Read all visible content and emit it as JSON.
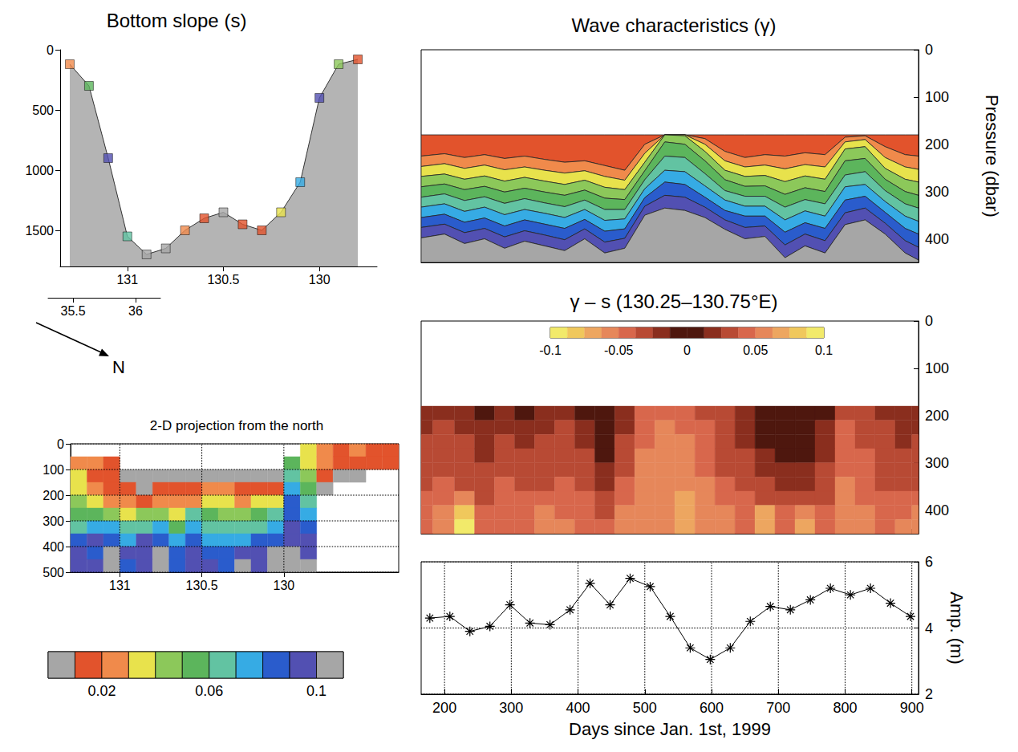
{
  "chart_data": [
    {
      "type": "area",
      "title": "Bottom slope (s)",
      "x": [
        131.3,
        131.2,
        131.1,
        131.0,
        130.9,
        130.8,
        130.7,
        130.6,
        130.5,
        130.4,
        130.3,
        130.2,
        130.1,
        130.0,
        129.9,
        129.8
      ],
      "values": [
        120,
        300,
        900,
        1550,
        1700,
        1650,
        1500,
        1400,
        1350,
        1450,
        1500,
        1350,
        1100,
        400,
        120,
        80
      ],
      "slope": [
        0.02,
        0.05,
        0.09,
        0.06,
        0.005,
        0.005,
        0.02,
        0.015,
        0.008,
        0.015,
        0.015,
        0.03,
        0.07,
        0.095,
        0.04,
        0.015
      ],
      "xlim": [
        131.35,
        129.7
      ],
      "xticks": [
        131,
        130.5,
        130
      ],
      "ylim": [
        1800,
        0
      ],
      "yticks": [
        0,
        500,
        1000,
        1500
      ],
      "latlim": [
        35.3,
        36.2
      ],
      "latticks": [
        35.5,
        36
      ],
      "direction_label": "N",
      "color": "#b4b4b4",
      "marker": "square"
    },
    {
      "type": "heatmap",
      "title": "2-D projection from the north",
      "x": [
        131.25,
        131.15,
        131.05,
        130.95,
        130.85,
        130.75,
        130.65,
        130.55,
        130.45,
        130.35,
        130.25,
        130.15,
        130.05,
        129.95,
        129.85,
        129.75,
        129.65,
        129.55,
        129.45,
        129.35
      ],
      "y": [
        25,
        75,
        125,
        175,
        225,
        275,
        325,
        375,
        425,
        475
      ],
      "cells": [
        [
          null,
          null,
          null,
          null,
          null,
          null,
          null,
          null,
          null,
          null,
          null,
          null,
          null,
          null,
          0.03,
          0.02,
          0.015,
          0.02,
          0.015,
          0.015
        ],
        [
          0.025,
          0.02,
          0.015,
          null,
          null,
          null,
          null,
          null,
          null,
          null,
          null,
          null,
          null,
          0.05,
          0.035,
          0.02,
          0.015,
          0.015,
          0.015,
          0.015
        ],
        [
          0.03,
          0.015,
          0.015,
          0.005,
          0.005,
          0.005,
          0.005,
          0.005,
          0.005,
          0.005,
          0.005,
          0.005,
          0.005,
          0.06,
          0.04,
          0.015,
          0.005,
          0.005,
          null,
          null
        ],
        [
          0.035,
          0.025,
          0.015,
          0.015,
          0.005,
          0.015,
          0.015,
          0.015,
          0.02,
          0.02,
          0.015,
          0.015,
          0.015,
          0.07,
          0.05,
          0.005,
          null,
          null,
          null,
          null
        ],
        [
          0.04,
          0.035,
          0.02,
          0.02,
          0.015,
          0.02,
          0.025,
          0.02,
          0.03,
          0.035,
          0.025,
          0.03,
          0.035,
          0.08,
          0.06,
          null,
          null,
          null,
          null,
          null
        ],
        [
          0.05,
          0.05,
          0.045,
          0.035,
          0.04,
          0.045,
          0.035,
          0.06,
          0.05,
          0.045,
          0.04,
          0.05,
          0.06,
          0.085,
          0.07,
          null,
          null,
          null,
          null,
          null
        ],
        [
          0.065,
          0.075,
          0.07,
          0.065,
          0.06,
          0.07,
          0.05,
          0.075,
          0.065,
          0.065,
          0.06,
          0.065,
          0.07,
          0.09,
          0.08,
          null,
          null,
          null,
          null,
          null
        ],
        [
          0.085,
          0.09,
          0.08,
          0.075,
          0.095,
          0.08,
          0.07,
          0.085,
          0.075,
          0.07,
          0.075,
          0.08,
          0.085,
          0.095,
          0.09,
          null,
          null,
          null,
          null,
          null
        ],
        [
          0.095,
          0.085,
          0.105,
          0.09,
          0.095,
          0.105,
          0.08,
          0.095,
          0.085,
          0.08,
          0.09,
          0.095,
          0.105,
          0.1,
          0.095,
          null,
          null,
          null,
          null,
          null
        ],
        [
          0.09,
          0.095,
          0.115,
          0.085,
          0.095,
          0.11,
          0.085,
          0.095,
          0.09,
          0.085,
          0.105,
          0.095,
          0.1,
          0.105,
          0.1,
          null,
          null,
          null,
          null,
          null
        ]
      ],
      "xlim": [
        131.3,
        129.3
      ],
      "xticks": [
        131,
        130.5,
        130
      ],
      "ylim": [
        500,
        0
      ],
      "yticks": [
        0,
        100,
        200,
        300,
        400,
        500
      ],
      "grid": true,
      "colorbar": {
        "range": [
          0,
          0.11
        ],
        "ticks": [
          0.02,
          0.06,
          0.1
        ],
        "colors": [
          "#a6a6a6",
          "#e2532c",
          "#f08a4b",
          "#e8e24c",
          "#8cc85a",
          "#5cb55c",
          "#62c3a2",
          "#36abe4",
          "#2a5ccc",
          "#5250b2",
          "#a6a6a6"
        ]
      }
    },
    {
      "type": "contour",
      "title": "Wave characteristics (γ)",
      "x": [
        165,
        200,
        230,
        260,
        290,
        320,
        350,
        380,
        410,
        440,
        470,
        500,
        530,
        560,
        590,
        620,
        650,
        680,
        710,
        740,
        770,
        800,
        830,
        860,
        890,
        910
      ],
      "top": 180,
      "levels": [
        0.02,
        0.03,
        0.04,
        0.05,
        0.06,
        0.07,
        0.08,
        0.09,
        0.1
      ],
      "contours": [
        [
          225,
          220,
          228,
          222,
          230,
          225,
          232,
          238,
          235,
          245,
          255,
          200,
          180,
          180,
          188,
          215,
          228,
          222,
          225,
          218,
          222,
          185,
          182,
          205,
          222,
          225
        ],
        [
          247,
          241,
          251,
          244,
          254,
          248,
          255,
          261,
          256,
          268,
          276,
          219,
          180,
          180,
          200,
          235,
          248,
          244,
          252,
          243,
          248,
          195,
          190,
          228,
          248,
          253
        ],
        [
          268,
          263,
          274,
          267,
          278,
          270,
          278,
          285,
          276,
          291,
          296,
          238,
          180,
          182,
          215,
          255,
          268,
          266,
          279,
          267,
          274,
          210,
          205,
          251,
          274,
          280
        ],
        [
          290,
          284,
          296,
          289,
          301,
          293,
          301,
          308,
          297,
          314,
          317,
          256,
          195,
          200,
          235,
          275,
          289,
          288,
          306,
          292,
          300,
          235,
          230,
          274,
          300,
          308
        ],
        [
          312,
          305,
          319,
          311,
          325,
          315,
          324,
          332,
          318,
          338,
          338,
          275,
          225,
          228,
          262,
          298,
          310,
          310,
          333,
          317,
          326,
          265,
          258,
          298,
          326,
          335
        ],
        [
          333,
          326,
          342,
          333,
          349,
          338,
          346,
          355,
          338,
          361,
          358,
          294,
          255,
          258,
          288,
          318,
          331,
          331,
          360,
          341,
          352,
          290,
          285,
          321,
          352,
          363
        ],
        [
          355,
          348,
          365,
          356,
          373,
          360,
          369,
          378,
          359,
          384,
          379,
          313,
          280,
          285,
          312,
          340,
          352,
          352,
          386,
          366,
          378,
          318,
          310,
          344,
          378,
          390
        ],
        [
          376,
          369,
          387,
          378,
          396,
          383,
          392,
          402,
          379,
          407,
          399,
          331,
          308,
          312,
          333,
          360,
          376,
          373,
          413,
          390,
          404,
          345,
          335,
          367,
          404,
          418
        ],
        [
          398,
          390,
          410,
          400,
          420,
          405,
          415,
          425,
          400,
          430,
          420,
          350,
          335,
          340,
          355,
          380,
          400,
          395,
          440,
          415,
          430,
          370,
          360,
          390,
          430,
          445
        ]
      ],
      "xlim": [
        165,
        910
      ],
      "xticks": [
        200,
        300,
        400,
        500,
        600,
        700,
        800,
        900
      ],
      "ylim": [
        450,
        0
      ],
      "yticks": [
        0,
        100,
        200,
        300,
        400
      ],
      "ylabel": "Pressure (dbar)",
      "tick_labels": "y"
    },
    {
      "type": "heatmap",
      "title": "γ – s (130.25–130.75°E)",
      "x": [
        165,
        200,
        230,
        260,
        290,
        320,
        350,
        380,
        410,
        440,
        470,
        500,
        530,
        560,
        590,
        620,
        650,
        680,
        710,
        740,
        770,
        800,
        830,
        860,
        890,
        910
      ],
      "y": [
        195,
        225,
        255,
        285,
        315,
        345,
        375,
        405,
        435
      ],
      "cells": [
        [
          0.015,
          0.02,
          0.015,
          0.01,
          0.015,
          0.01,
          0.015,
          0.02,
          0.01,
          0.005,
          0.015,
          0.04,
          0.045,
          0.04,
          0.035,
          0.025,
          0.015,
          0.005,
          0.005,
          0.005,
          0.01,
          0.035,
          0.03,
          0.02,
          0.015,
          0.015
        ],
        [
          0.02,
          0.025,
          0.02,
          0.015,
          0.02,
          0.015,
          0.02,
          0.025,
          0.015,
          0.005,
          0.02,
          0.045,
          0.05,
          0.045,
          0.04,
          0.03,
          0.02,
          0.01,
          0.005,
          0.005,
          0.015,
          0.04,
          0.035,
          0.025,
          0.02,
          0.02
        ],
        [
          0.025,
          0.03,
          0.025,
          0.015,
          0.025,
          0.02,
          0.025,
          0.03,
          0.02,
          0.005,
          0.025,
          0.045,
          0.05,
          0.05,
          0.04,
          0.03,
          0.02,
          0.01,
          0.01,
          0.005,
          0.015,
          0.04,
          0.035,
          0.025,
          0.02,
          0.025
        ],
        [
          0.03,
          0.03,
          0.03,
          0.02,
          0.03,
          0.025,
          0.03,
          0.03,
          0.025,
          0.01,
          0.03,
          0.05,
          0.055,
          0.05,
          0.045,
          0.035,
          0.025,
          0.015,
          0.01,
          0.01,
          0.02,
          0.045,
          0.04,
          0.03,
          0.025,
          0.03
        ],
        [
          0.035,
          0.035,
          0.03,
          0.025,
          0.035,
          0.03,
          0.035,
          0.035,
          0.03,
          0.015,
          0.035,
          0.05,
          0.055,
          0.055,
          0.045,
          0.035,
          0.03,
          0.02,
          0.015,
          0.015,
          0.025,
          0.045,
          0.04,
          0.03,
          0.03,
          0.035
        ],
        [
          0.035,
          0.04,
          0.035,
          0.03,
          0.04,
          0.035,
          0.035,
          0.04,
          0.035,
          0.02,
          0.04,
          0.055,
          0.06,
          0.055,
          0.05,
          0.04,
          0.035,
          0.025,
          0.02,
          0.02,
          0.03,
          0.05,
          0.045,
          0.035,
          0.035,
          0.035
        ],
        [
          0.04,
          0.045,
          0.05,
          0.035,
          0.04,
          0.04,
          0.045,
          0.04,
          0.04,
          0.03,
          0.045,
          0.055,
          0.06,
          0.065,
          0.055,
          0.045,
          0.04,
          0.035,
          0.03,
          0.035,
          0.035,
          0.05,
          0.045,
          0.04,
          0.04,
          0.04
        ],
        [
          0.045,
          0.05,
          0.085,
          0.04,
          0.045,
          0.045,
          0.05,
          0.045,
          0.045,
          0.035,
          0.05,
          0.06,
          0.06,
          0.07,
          0.055,
          0.05,
          0.045,
          0.065,
          0.04,
          0.06,
          0.04,
          0.05,
          0.05,
          0.045,
          0.045,
          0.05
        ],
        [
          0.045,
          0.05,
          0.09,
          0.045,
          0.045,
          0.045,
          0.05,
          0.05,
          0.045,
          0.04,
          0.05,
          0.055,
          0.06,
          0.065,
          0.05,
          0.05,
          0.045,
          0.07,
          0.045,
          0.065,
          0.045,
          0.05,
          0.05,
          0.045,
          0.05,
          0.05
        ]
      ],
      "xlim": [
        165,
        910
      ],
      "xticks": [
        200,
        300,
        400,
        500,
        600,
        700,
        800,
        900
      ],
      "ylim": [
        450,
        0
      ],
      "yticks": [
        0,
        100,
        200,
        300,
        400
      ],
      "tick_labels": "y",
      "colorbar": {
        "range": [
          -0.1,
          0.1
        ],
        "ticks": [
          -0.1,
          -0.05,
          0,
          0.05,
          0.1
        ],
        "colors": [
          "#f2ea6a",
          "#f0c85c",
          "#eda660",
          "#e6875a",
          "#d8674c",
          "#b84a34",
          "#8a2e1e",
          "#4e170e",
          "#4e170e",
          "#8a2e1e",
          "#b84a34",
          "#d8674c",
          "#e6875a",
          "#eda660",
          "#f0c85c",
          "#f2ea6a"
        ]
      }
    },
    {
      "type": "line",
      "x": [
        178,
        208,
        238,
        268,
        298,
        328,
        358,
        388,
        418,
        448,
        478,
        508,
        538,
        568,
        598,
        628,
        658,
        688,
        718,
        748,
        778,
        808,
        838,
        868,
        898
      ],
      "values": [
        4.3,
        4.35,
        3.9,
        4.05,
        4.7,
        4.15,
        4.1,
        4.55,
        5.35,
        4.7,
        5.5,
        5.25,
        4.35,
        3.4,
        3.05,
        3.4,
        4.2,
        4.65,
        4.55,
        4.85,
        5.2,
        5.0,
        5.2,
        4.75,
        4.35
      ],
      "xlim": [
        165,
        910
      ],
      "xticks": [
        200,
        300,
        400,
        500,
        600,
        700,
        800,
        900
      ],
      "ylim": [
        2,
        6
      ],
      "yticks": [
        2,
        4,
        6
      ],
      "xlabel": "Days since Jan. 1st, 1999",
      "ylabel": "Amp. (m)",
      "grid": true,
      "marker": "star",
      "color": "#000000"
    }
  ]
}
